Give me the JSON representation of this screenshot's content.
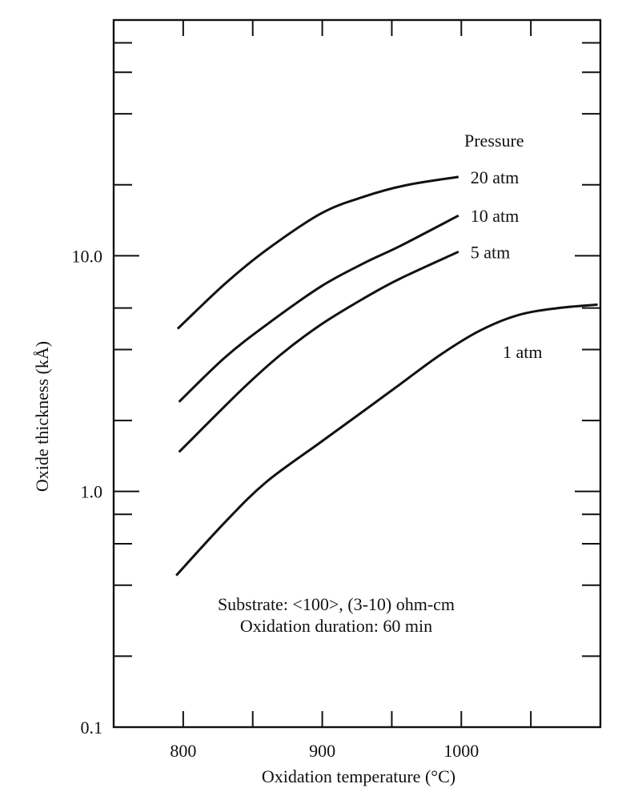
{
  "chart_data": {
    "type": "line",
    "title": "",
    "xlabel": "Oxidation temperature (°C)",
    "ylabel": "Oxide thickness (kÅ)",
    "xscale": "linear",
    "yscale": "log",
    "xlim": [
      750,
      1100
    ],
    "ylim": [
      0.1,
      100
    ],
    "grid": false,
    "x_ticks": [
      750,
      800,
      850,
      900,
      950,
      1000,
      1050,
      1100
    ],
    "x_tick_labels": [
      {
        "value": 800,
        "label": "800"
      },
      {
        "value": 900,
        "label": "900"
      },
      {
        "value": 1000,
        "label": "1000"
      }
    ],
    "y_ticks": [
      0.2,
      0.4,
      0.6,
      0.8,
      1,
      2,
      4,
      6,
      10,
      20,
      40,
      60,
      80
    ],
    "y_tick_labels": [
      {
        "value": 0.1,
        "label": "0.1"
      },
      {
        "value": 1,
        "label": "1.0"
      },
      {
        "value": 10,
        "label": "10.0"
      }
    ],
    "legend_title": "Pressure",
    "series": [
      {
        "name": "20 atm",
        "x": [
          796,
          830,
          860,
          899,
          930,
          960,
          998
        ],
        "y": [
          4.9,
          7.6,
          10.6,
          15.1,
          17.8,
          19.9,
          21.6
        ]
      },
      {
        "name": "10 atm",
        "x": [
          797,
          830,
          860,
          899,
          930,
          956,
          998
        ],
        "y": [
          2.4,
          3.7,
          5.1,
          7.4,
          9.3,
          11.0,
          14.8
        ]
      },
      {
        "name": "5 atm",
        "x": [
          797,
          842,
          870,
          899,
          930,
          956,
          998
        ],
        "y": [
          1.47,
          2.7,
          3.8,
          5.1,
          6.6,
          8.0,
          10.4
        ]
      },
      {
        "name": "1 atm",
        "x": [
          795,
          830,
          860,
          899,
          930,
          956,
          985,
          1013,
          1041,
          1070,
          1098
        ],
        "y": [
          0.44,
          0.74,
          1.1,
          1.62,
          2.2,
          2.85,
          3.8,
          4.8,
          5.6,
          6.0,
          6.2
        ]
      }
    ],
    "annotations": [
      "Substrate: <100>, (3-10) ohm-cm",
      "Oxidation duration: 60 min"
    ]
  }
}
